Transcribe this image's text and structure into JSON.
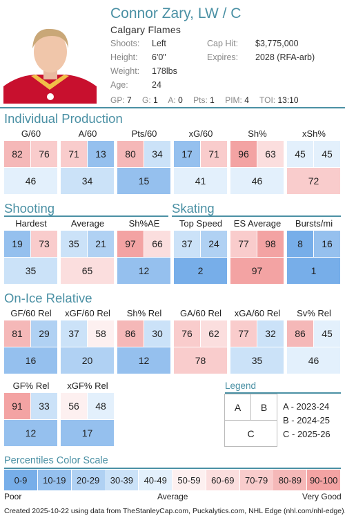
{
  "player": {
    "name": "Connor Zary, LW / C",
    "team": "Calgary Flames",
    "shoots_label": "Shoots:",
    "shoots": "Left",
    "height_label": "Height:",
    "height": "6'0\"",
    "weight_label": "Weight:",
    "weight": "178lbs",
    "age_label": "Age:",
    "age": "24",
    "cap_label": "Cap Hit:",
    "cap": "$3,775,000",
    "expires_label": "Expires:",
    "expires": "2028 (RFA-arb)"
  },
  "stats": [
    {
      "label": "GP:",
      "value": "7"
    },
    {
      "label": "G:",
      "value": "1"
    },
    {
      "label": "A:",
      "value": "0"
    },
    {
      "label": "Pts:",
      "value": "1"
    },
    {
      "label": "PIM:",
      "value": "4"
    },
    {
      "label": "TOI:",
      "value": "13:10"
    }
  ],
  "sections": {
    "individual": "Individual Production",
    "shooting": "Shooting",
    "skating": "Skating",
    "onice": "On-Ice Relative"
  },
  "metrics": {
    "g60": {
      "label": "G/60",
      "a": 82,
      "b": 76,
      "c": 46
    },
    "a60": {
      "label": "A/60",
      "a": 71,
      "b": 13,
      "c": 34
    },
    "pts60": {
      "label": "Pts/60",
      "a": 80,
      "b": 34,
      "c": 15
    },
    "xg60": {
      "label": "xG/60",
      "a": 17,
      "b": 71,
      "c": 41
    },
    "sh": {
      "label": "Sh%",
      "a": 96,
      "b": 63,
      "c": 46
    },
    "xsh": {
      "label": "xSh%",
      "a": 45,
      "b": 45,
      "c": 72
    },
    "hard": {
      "label": "Hardest",
      "a": 19,
      "b": 73,
      "c": 35
    },
    "avg": {
      "label": "Average",
      "a": 35,
      "b": 21,
      "c": 65
    },
    "shae": {
      "label": "Sh%AE",
      "a": 97,
      "b": 66,
      "c": 12
    },
    "tops": {
      "label": "Top Speed",
      "a": 37,
      "b": 24,
      "c": 2
    },
    "esavg": {
      "label": "ES Average",
      "a": 77,
      "b": 98,
      "c": 97
    },
    "burst": {
      "label": "Bursts/mi",
      "a": 8,
      "b": 16,
      "c": 1
    },
    "gf60": {
      "label": "GF/60 Rel",
      "a": 81,
      "b": 29,
      "c": 16
    },
    "xgf60": {
      "label": "xGF/60 Rel",
      "a": 37,
      "b": 58,
      "c": 20
    },
    "shrel": {
      "label": "Sh% Rel",
      "a": 86,
      "b": 30,
      "c": 12
    },
    "ga60": {
      "label": "GA/60 Rel",
      "a": 76,
      "b": 62,
      "c": 78
    },
    "xga60": {
      "label": "xGA/60 Rel",
      "a": 77,
      "b": 32,
      "c": 35
    },
    "svrel": {
      "label": "Sv% Rel",
      "a": 86,
      "b": 45,
      "c": 46
    },
    "gfp": {
      "label": "GF% Rel",
      "a": 91,
      "b": 33,
      "c": 12
    },
    "xgfp": {
      "label": "xGF% Rel",
      "a": 56,
      "b": 48,
      "c": 17
    }
  },
  "legend": {
    "title": "Legend",
    "a": "A",
    "b": "B",
    "c": "C",
    "a_desc": "A - 2023-24",
    "b_desc": "B - 2024-25",
    "c_desc": "C - 2025-26"
  },
  "scale": {
    "title": "Percentiles Color Scale",
    "bins": [
      {
        "label": "0-9",
        "color": "#77aee9"
      },
      {
        "label": "10-19",
        "color": "#95c0ee"
      },
      {
        "label": "20-29",
        "color": "#b0d1f3"
      },
      {
        "label": "30-39",
        "color": "#cbe2f8"
      },
      {
        "label": "40-49",
        "color": "#e3f0fc"
      },
      {
        "label": "50-59",
        "color": "#fdf0f0"
      },
      {
        "label": "60-69",
        "color": "#fbdede"
      },
      {
        "label": "70-79",
        "color": "#f9cccc"
      },
      {
        "label": "80-89",
        "color": "#f5b8b8"
      },
      {
        "label": "90-100",
        "color": "#f3a3a3"
      }
    ],
    "poor": "Poor",
    "average": "Average",
    "verygood": "Very Good"
  },
  "footer": "Created 2025-10-22 using data from TheStanleyCap.com, Puckalytics.com, NHL Edge (nhl.com/nhl-edge)."
}
